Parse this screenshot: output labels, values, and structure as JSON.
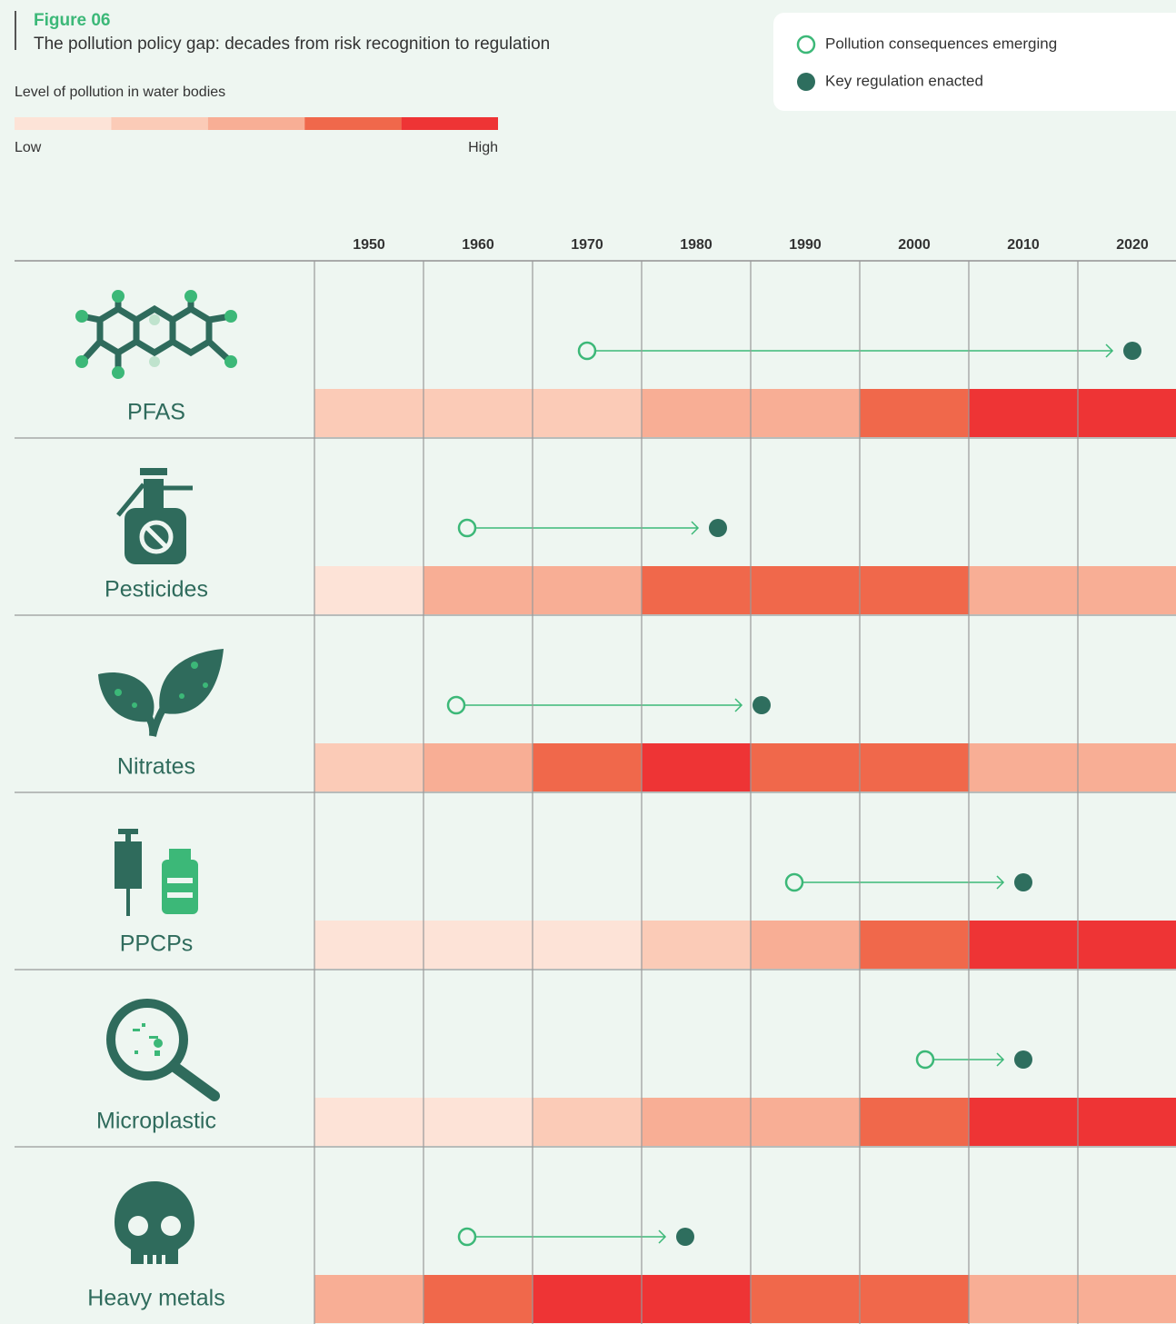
{
  "chart_data": {
    "type": "timeline",
    "figure_label": "Figure 06",
    "title": "The pollution policy gap: decades from risk recognition to regulation",
    "scale": {
      "label": "Level of pollution in water bodies",
      "low": "Low",
      "high": "High",
      "colors": [
        "#fde3d7",
        "#fbcbb7",
        "#f8ae95",
        "#f0684b",
        "#ee3435"
      ]
    },
    "legend": [
      {
        "name": "Pollution consequences emerging",
        "marker": "open",
        "color": "#3cb878"
      },
      {
        "name": "Key regulation enacted",
        "marker": "filled",
        "color": "#2e6e5e"
      }
    ],
    "xlim": [
      1945,
      2024
    ],
    "xticks": [
      1950,
      1960,
      1970,
      1980,
      1990,
      2000,
      2010,
      2020
    ],
    "series": [
      {
        "name": "PFAS",
        "emerging": 1970,
        "regulation": 2020,
        "levels": [
          2,
          2,
          2,
          3,
          3,
          4,
          5,
          5
        ]
      },
      {
        "name": "Pesticides",
        "emerging": 1959,
        "regulation": 1982,
        "levels": [
          1,
          3,
          3,
          4,
          4,
          4,
          3,
          3
        ]
      },
      {
        "name": "Nitrates",
        "emerging": 1958,
        "regulation": 1986,
        "levels": [
          2,
          3,
          4,
          5,
          4,
          4,
          3,
          3
        ]
      },
      {
        "name": "PPCPs",
        "emerging": 1989,
        "regulation": 2010,
        "levels": [
          1,
          1,
          1,
          2,
          3,
          4,
          5,
          5
        ]
      },
      {
        "name": "Microplastic",
        "emerging": 2001,
        "regulation": 2010,
        "levels": [
          1,
          1,
          2,
          3,
          3,
          4,
          5,
          5
        ]
      },
      {
        "name": "Heavy metals",
        "emerging": 1959,
        "regulation": 1979,
        "levels": [
          3,
          4,
          5,
          5,
          4,
          4,
          3,
          3
        ]
      }
    ]
  }
}
